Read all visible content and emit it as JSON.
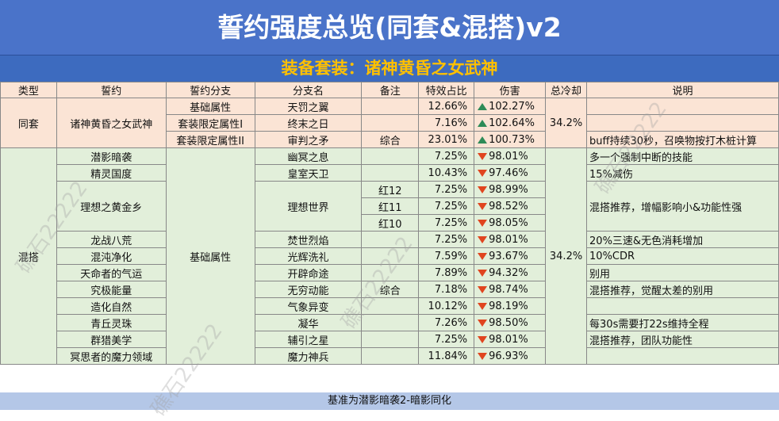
{
  "title": "誓约强度总览(同套&混搭)v2",
  "subtitle": "装备套装：诸神黄昏之女武神",
  "footer": "基准为潜影暗袭2-暗影同化",
  "watermark": "礁石22222",
  "headers": [
    "类型",
    "誓约",
    "誓约分支",
    "分支名",
    "备注",
    "特效占比",
    "伤害",
    "总冷却",
    "说明"
  ],
  "same_set": {
    "type": "同套",
    "vow": "诸神黄昏之女武神",
    "cooldown": "34.2%",
    "rows": [
      {
        "branch": "基础属性",
        "name": "天罚之翼",
        "note": "",
        "pct": "12.66%",
        "dir": "up",
        "dmg": "102.27%",
        "desc": ""
      },
      {
        "branch": "套装限定属性I",
        "name": "终末之日",
        "note": "",
        "pct": "7.16%",
        "dir": "up",
        "dmg": "102.64%",
        "desc": ""
      },
      {
        "branch": "套装限定属性II",
        "name": "审判之矛",
        "note": "综合",
        "pct": "23.01%",
        "dir": "up",
        "dmg": "100.73%",
        "desc": "buff持续30秒，召唤物按打木桩计算"
      }
    ]
  },
  "mixed": {
    "type": "混搭",
    "branch": "基础属性",
    "cooldown": "34.2%",
    "vows": {
      "v1": "潜影暗袭",
      "v2": "精灵国度",
      "v3": "理想之黄金乡",
      "v4": "龙战八荒",
      "v5": "混沌净化",
      "v6": "天命者的气运",
      "v7": "究极能量",
      "v8": "造化自然",
      "v9": "青丘灵珠",
      "v10": "群猎美学",
      "v11": "冥思者的魔力领域"
    },
    "names": {
      "n1": "幽冥之息",
      "n2": "皇室天卫",
      "n3": "理想世界",
      "n4": "焚世烈焰",
      "n5": "光辉洗礼",
      "n6": "开辟命途",
      "n7": "无穷动能",
      "n8": "气象异变",
      "n9": "凝华",
      "n10": "辅引之星",
      "n11": "魔力神兵"
    },
    "notes": {
      "r3": "红12",
      "r4": "红11",
      "r5": "红10",
      "r9": "综合"
    },
    "pcts": [
      "7.25%",
      "10.43%",
      "7.25%",
      "7.25%",
      "7.25%",
      "7.25%",
      "7.59%",
      "7.89%",
      "7.18%",
      "10.12%",
      "7.26%",
      "7.25%",
      "11.84%"
    ],
    "dmgs": [
      "98.01%",
      "97.46%",
      "98.99%",
      "98.52%",
      "98.05%",
      "98.01%",
      "93.67%",
      "94.32%",
      "98.74%",
      "98.19%",
      "98.50%",
      "98.01%",
      "96.93%"
    ],
    "descs": {
      "d1": "多一个强制中断的技能",
      "d2": "15%减伤",
      "d3": "混搭推荐，增幅影响小&功能性强",
      "d6": "20%三速&无色消耗增加",
      "d7": "10%CDR",
      "d8": "别用",
      "d9": "混搭推荐，觉醒太差的别用",
      "d11": "每30s需要打22s维持全程",
      "d12": "混搭推荐，团队功能性"
    }
  },
  "colors": {
    "title_bg": "#4a73c9",
    "subtitle_text": "#ffc000",
    "same_bg": "#fbe4d5",
    "mixed_bg": "#e2efda",
    "up": "#2e8b57",
    "down": "#e0451f"
  }
}
